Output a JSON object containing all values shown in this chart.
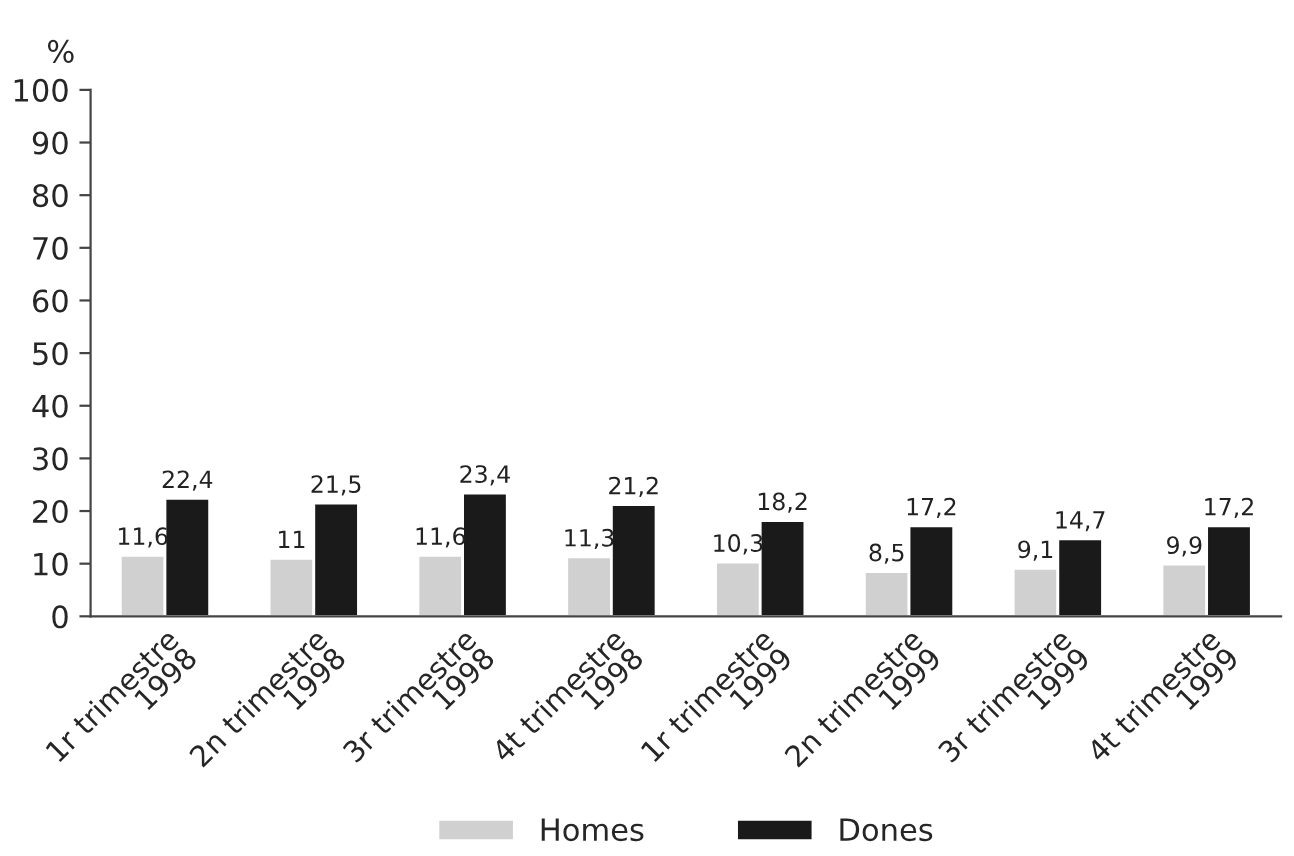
{
  "chart_data": {
    "type": "bar",
    "ylabel": "%",
    "categories": [
      "1r trimestre\n1998",
      "2n trimestre\n1998",
      "3r trimestre\n1998",
      "4t trimestre\n1998",
      "1r trimestre\n1999",
      "2n trimestre\n1999",
      "3r trimestre\n1999",
      "4t trimestre\n1999"
    ],
    "series": [
      {
        "name": "Homes",
        "color": "#d0d0d0",
        "values": [
          11.6,
          11,
          11.6,
          11.3,
          10.3,
          8.5,
          9.1,
          9.9
        ],
        "value_labels": [
          "11,6",
          "11",
          "11,6",
          "11,3",
          "10,3",
          "8,5",
          "9,1",
          "9,9"
        ]
      },
      {
        "name": "Dones",
        "color": "#1a1a1a",
        "values": [
          22.4,
          21.5,
          23.4,
          21.2,
          18.2,
          17.2,
          14.7,
          17.2
        ],
        "value_labels": [
          "22,4",
          "21,5",
          "23,4",
          "21,2",
          "18,2",
          "17,2",
          "14,7",
          "17,2"
        ]
      }
    ],
    "ylim": [
      0,
      100
    ],
    "yticks": [
      0,
      10,
      20,
      30,
      40,
      50,
      60,
      70,
      80,
      90,
      100
    ],
    "grid": false,
    "legend": "bottom"
  }
}
